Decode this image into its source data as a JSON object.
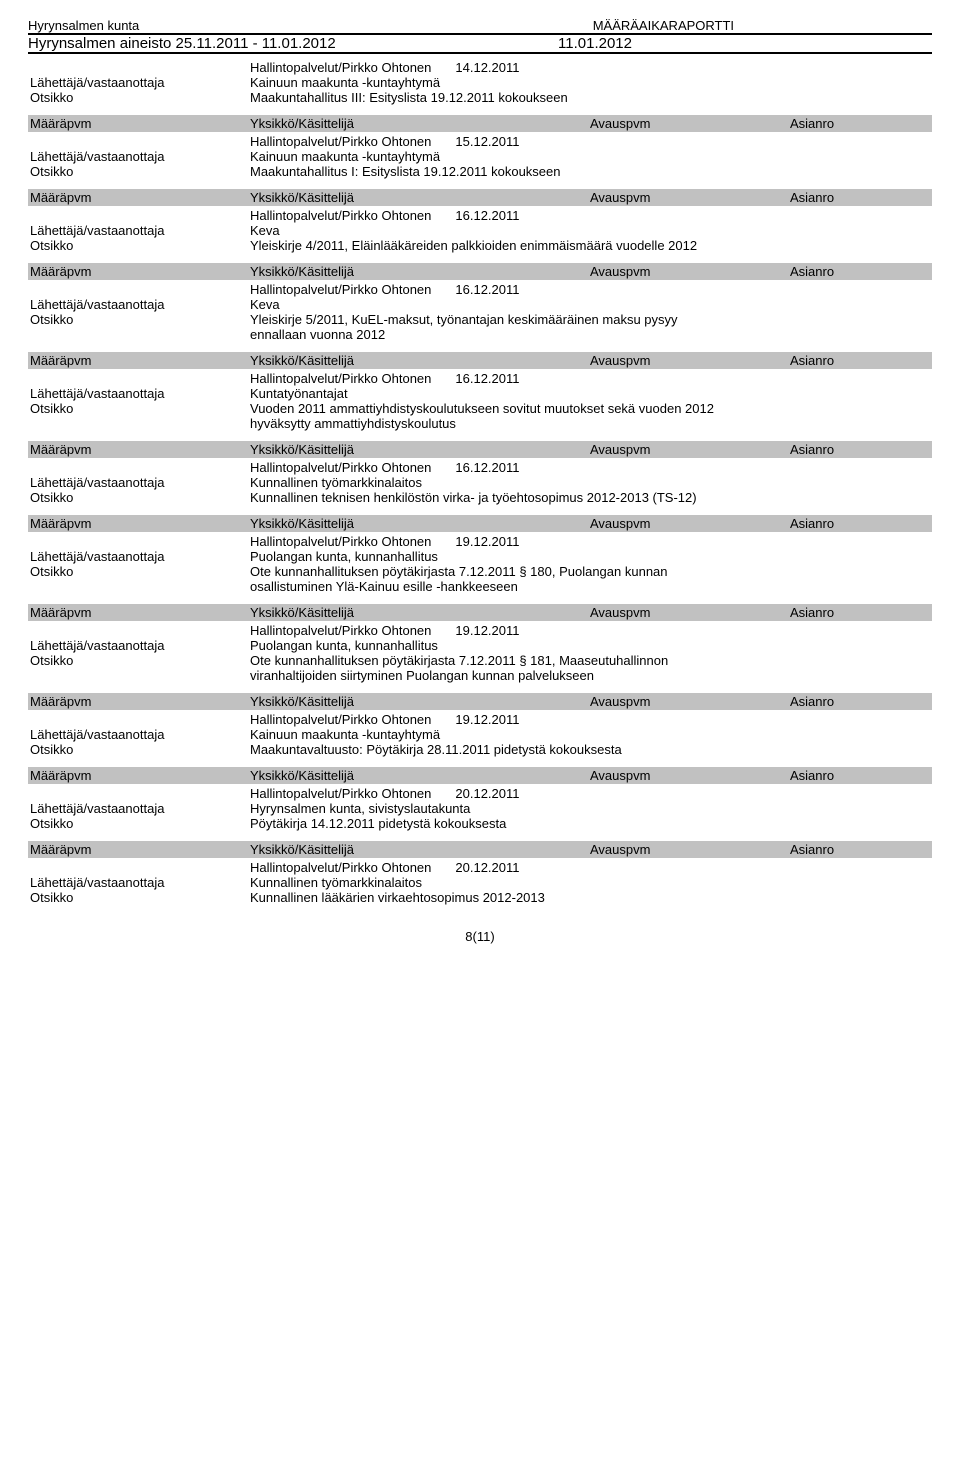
{
  "header": {
    "org": "Hyrynsalmen kunta",
    "report_title": "MÄÄRÄAIKARAPORTTI",
    "material_range": "Hyrynsalmen aineisto 25.11.2011 - 11.01.2012",
    "report_date": "11.01.2012"
  },
  "bar_labels": {
    "col_a": "Määräpvm",
    "col_b": "Yksikkö/Käsittelijä",
    "col_c": "Avauspvm",
    "col_d": "Asianro"
  },
  "field_labels": {
    "sender": "Lähettäjä/vastaanottaja",
    "title": "Otsikko"
  },
  "entries": [
    {
      "unit": "Hallintopalvelut/Pirkko Ohtonen",
      "date": "14.12.2011",
      "sender": "Kainuun maakunta -kuntayhtymä",
      "title_lines": [
        "Maakuntahallitus III: Esityslista 19.12.2011 kokoukseen"
      ],
      "no_bar_above": true
    },
    {
      "unit": "Hallintopalvelut/Pirkko Ohtonen",
      "date": "15.12.2011",
      "sender": "Kainuun maakunta -kuntayhtymä",
      "title_lines": [
        "Maakuntahallitus I: Esityslista 19.12.2011 kokoukseen"
      ]
    },
    {
      "unit": "Hallintopalvelut/Pirkko Ohtonen",
      "date": "16.12.2011",
      "sender": "Keva",
      "title_lines": [
        "Yleiskirje 4/2011, Eläinlääkäreiden palkkioiden enimmäismäärä vuodelle 2012"
      ]
    },
    {
      "unit": "Hallintopalvelut/Pirkko Ohtonen",
      "date": "16.12.2011",
      "sender": "Keva",
      "title_lines": [
        "Yleiskirje 5/2011, KuEL-maksut, työnantajan keskimääräinen maksu pysyy",
        "ennallaan vuonna 2012"
      ]
    },
    {
      "unit": "Hallintopalvelut/Pirkko Ohtonen",
      "date": "16.12.2011",
      "sender": "Kuntatyönantajat",
      "title_lines": [
        "Vuoden 2011 ammattiyhdistyskoulutukseen sovitut muutokset sekä vuoden 2012",
        "hyväksytty ammattiyhdistyskoulutus"
      ]
    },
    {
      "unit": "Hallintopalvelut/Pirkko Ohtonen",
      "date": "16.12.2011",
      "sender": "Kunnallinen työmarkkinalaitos",
      "title_lines": [
        "Kunnallinen teknisen henkilöstön virka- ja työehtosopimus 2012-2013 (TS-12)"
      ]
    },
    {
      "unit": "Hallintopalvelut/Pirkko Ohtonen",
      "date": "19.12.2011",
      "sender": "Puolangan kunta, kunnanhallitus",
      "title_lines": [
        "Ote kunnanhallituksen pöytäkirjasta 7.12.2011 § 180, Puolangan kunnan",
        "osallistuminen Ylä-Kainuu esille -hankkeeseen"
      ]
    },
    {
      "unit": "Hallintopalvelut/Pirkko Ohtonen",
      "date": "19.12.2011",
      "sender": "Puolangan kunta, kunnanhallitus",
      "title_lines": [
        "Ote kunnanhallituksen pöytäkirjasta 7.12.2011 § 181, Maaseutuhallinnon",
        "viranhaltijoiden siirtyminen Puolangan kunnan palvelukseen"
      ]
    },
    {
      "unit": "Hallintopalvelut/Pirkko Ohtonen",
      "date": "19.12.2011",
      "sender": "Kainuun maakunta -kuntayhtymä",
      "title_lines": [
        "Maakuntavaltuusto: Pöytäkirja 28.11.2011 pidetystä kokouksesta"
      ]
    },
    {
      "unit": "Hallintopalvelut/Pirkko Ohtonen",
      "date": "20.12.2011",
      "sender": "Hyrynsalmen kunta, sivistyslautakunta",
      "title_lines": [
        "Pöytäkirja 14.12.2011 pidetystä kokouksesta"
      ]
    },
    {
      "unit": "Hallintopalvelut/Pirkko Ohtonen",
      "date": "20.12.2011",
      "sender": "Kunnallinen työmarkkinalaitos",
      "title_lines": [
        "Kunnallinen lääkärien virkaehtosopimus 2012-2013"
      ]
    }
  ],
  "page_num": "8(11)"
}
